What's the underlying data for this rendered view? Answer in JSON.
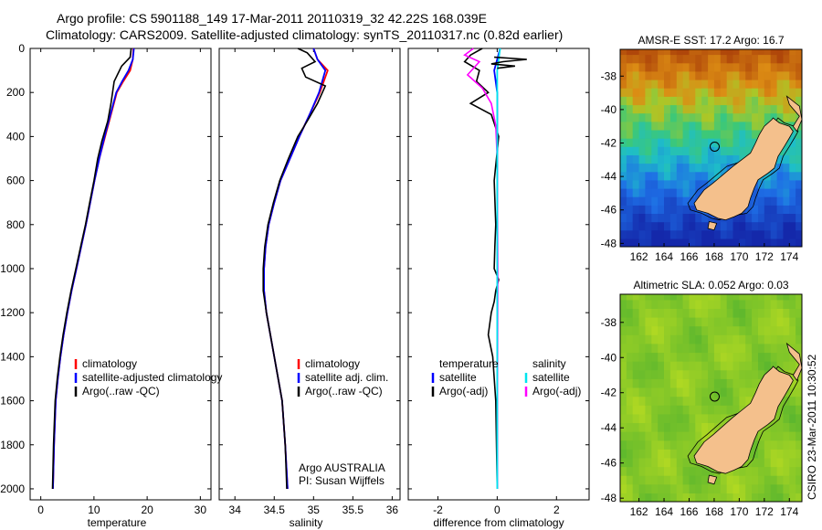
{
  "titles": {
    "line1": "Argo profile: CS 5901188_149 17-Mar-2011 20110319_32 42.22S 168.039E",
    "line2": "Climatology: CARS2009. Satellite-adjusted climatology: synTS_20110317.nc (0.82d earlier)"
  },
  "side_stamp": "CSIRO 23-Mar-2011 10:30:52",
  "colors": {
    "argo": "#000000",
    "climatology": "#ff0000",
    "satellite": "#0000ff",
    "salinity_satellite": "#00e5ee",
    "salinity_argo_adj": "#ff00ff",
    "land": "#f4c08c"
  },
  "chart_data": [
    {
      "type": "line",
      "id": "temperature",
      "xlabel": "temperature",
      "ylabel": "",
      "xlim": [
        -2,
        32
      ],
      "ylim": [
        2050,
        0
      ],
      "xticks": [
        0,
        10,
        20,
        30
      ],
      "yticks": [
        0,
        200,
        400,
        600,
        800,
        1000,
        1200,
        1400,
        1600,
        1800,
        2000
      ],
      "legend": [
        {
          "label": "climatology",
          "color": "#ff0000"
        },
        {
          "label": "satellite-adjusted climatology",
          "color": "#0000ff"
        },
        {
          "label": "Argo(..raw -QC)",
          "color": "#000000"
        }
      ],
      "series": [
        {
          "key": "clim",
          "color": "#ff0000",
          "x": [
            17.4,
            17.3,
            16.8,
            15.5,
            14.3,
            13.2,
            12.1,
            11.0,
            10.1,
            9.3,
            8.5,
            7.6,
            6.7,
            5.8,
            5.0,
            4.3,
            3.7,
            3.2,
            2.8,
            2.5,
            2.3
          ],
          "y": [
            0,
            50,
            100,
            150,
            200,
            300,
            400,
            500,
            600,
            700,
            800,
            900,
            1000,
            1100,
            1200,
            1300,
            1400,
            1500,
            1600,
            1800,
            2000
          ]
        },
        {
          "key": "sat",
          "color": "#0000ff",
          "x": [
            17.5,
            17.3,
            16.5,
            15.3,
            14.2,
            13.1,
            12.0,
            11.0,
            10.1,
            9.3,
            8.5,
            7.6,
            6.7,
            5.8,
            5.0,
            4.3,
            3.7,
            3.2,
            2.8,
            2.5,
            2.3
          ],
          "y": [
            0,
            50,
            100,
            150,
            200,
            300,
            400,
            500,
            600,
            700,
            800,
            900,
            1000,
            1100,
            1200,
            1300,
            1400,
            1500,
            1600,
            1800,
            2000
          ]
        },
        {
          "key": "argo",
          "color": "#000000",
          "x": [
            17.0,
            16.8,
            15.2,
            13.8,
            13.2,
            12.6,
            11.5,
            10.7,
            10.0,
            9.2,
            8.4,
            7.5,
            6.6,
            5.7,
            4.9,
            4.2,
            3.6,
            3.1,
            2.7,
            2.4,
            2.2
          ],
          "y": [
            0,
            40,
            80,
            150,
            250,
            330,
            420,
            500,
            600,
            700,
            800,
            900,
            1000,
            1100,
            1200,
            1300,
            1400,
            1500,
            1600,
            1800,
            2000
          ]
        }
      ]
    },
    {
      "type": "line",
      "id": "salinity",
      "xlabel": "salinity",
      "ylabel": "",
      "xlim": [
        33.8,
        36.1
      ],
      "ylim": [
        2050,
        0
      ],
      "xticks": [
        34,
        34.5,
        35,
        35.5,
        36
      ],
      "legend": [
        {
          "label": "climatology",
          "color": "#ff0000"
        },
        {
          "label": "satellite adj. clim.",
          "color": "#0000ff"
        },
        {
          "label": "Argo(..raw -QC)",
          "color": "#000000"
        }
      ],
      "annotation": [
        "Argo AUSTRALIA",
        "PI: Susan Wijffels"
      ],
      "series": [
        {
          "key": "clim",
          "color": "#ff0000",
          "x": [
            35.0,
            35.05,
            35.18,
            35.08,
            34.95,
            34.82,
            34.7,
            34.58,
            34.5,
            34.43,
            34.39,
            34.37,
            34.37,
            34.4,
            34.45,
            34.5,
            34.55,
            34.6,
            34.64,
            34.67
          ],
          "y": [
            0,
            50,
            100,
            200,
            300,
            400,
            500,
            600,
            700,
            800,
            900,
            1000,
            1100,
            1200,
            1300,
            1400,
            1500,
            1600,
            1800,
            2000
          ]
        },
        {
          "key": "sat",
          "color": "#0000ff",
          "x": [
            35.0,
            35.05,
            35.15,
            35.07,
            34.95,
            34.82,
            34.7,
            34.58,
            34.5,
            34.43,
            34.39,
            34.37,
            34.37,
            34.4,
            34.45,
            34.5,
            34.55,
            34.6,
            34.64,
            34.67
          ],
          "y": [
            0,
            50,
            100,
            200,
            300,
            400,
            500,
            600,
            700,
            800,
            900,
            1000,
            1100,
            1200,
            1300,
            1400,
            1500,
            1600,
            1800,
            2000
          ]
        },
        {
          "key": "argo",
          "color": "#000000",
          "x": [
            34.8,
            34.92,
            35.02,
            34.85,
            34.9,
            35.15,
            35.05,
            34.92,
            34.8,
            34.68,
            34.57,
            34.49,
            34.42,
            34.38,
            34.36,
            34.36,
            34.4,
            34.45,
            34.5,
            34.55,
            34.6,
            34.64,
            34.66
          ],
          "y": [
            0,
            20,
            60,
            90,
            130,
            170,
            250,
            330,
            400,
            500,
            600,
            700,
            800,
            900,
            1000,
            1100,
            1200,
            1300,
            1400,
            1500,
            1600,
            1800,
            2000
          ]
        }
      ]
    },
    {
      "type": "line",
      "id": "difference",
      "xlabel": "difference from climatology",
      "ylabel": "",
      "xlim": [
        -3,
        3.1
      ],
      "ylim": [
        2050,
        0
      ],
      "xticks": [
        -2,
        0,
        2
      ],
      "legend_left": {
        "header": "temperature",
        "items": [
          {
            "label": "satellite",
            "color": "#0000ff"
          },
          {
            "label": "Argo(-adj)",
            "color": "#000000"
          }
        ]
      },
      "legend_right": {
        "header": "salinity",
        "items": [
          {
            "label": "satellite",
            "color": "#00e5ee"
          },
          {
            "label": "Argo(-adj)",
            "color": "#ff00ff"
          }
        ]
      },
      "series": [
        {
          "key": "temp_argo",
          "color": "#000000",
          "x": [
            -0.5,
            -0.9,
            -1.1,
            -0.6,
            -0.7,
            -0.3,
            -0.9,
            -0.2,
            0.05,
            -0.1,
            -0.05,
            -0.08,
            -0.1,
            0.05,
            -0.05,
            -0.1,
            -0.2,
            -0.3,
            -0.15,
            -0.05,
            0.0
          ],
          "y": [
            0,
            30,
            60,
            100,
            150,
            200,
            250,
            300,
            400,
            600,
            800,
            900,
            1000,
            1050,
            1100,
            1150,
            1200,
            1300,
            1400,
            1600,
            2000
          ]
        },
        {
          "key": "temp_sat",
          "color": "#0000ff",
          "x": [
            0.1,
            0.0,
            -0.1,
            0.0,
            0.0,
            0.0,
            0.0
          ],
          "y": [
            0,
            50,
            100,
            200,
            500,
            1000,
            2000
          ]
        },
        {
          "key": "sal_argo",
          "color": "#ff00ff",
          "x": [
            -0.8,
            -1.1,
            -0.6,
            -1.0,
            -0.5,
            -0.2,
            -0.05,
            0.0,
            0.02,
            0.0
          ],
          "y": [
            0,
            30,
            60,
            120,
            180,
            250,
            350,
            500,
            1000,
            2000
          ]
        },
        {
          "key": "sal_sat",
          "color": "#00e5ee",
          "x": [
            0.1,
            0.05,
            0.0,
            0.0,
            0.0
          ],
          "y": [
            0,
            50,
            100,
            500,
            2000
          ]
        },
        {
          "key": "temp_argo_spike",
          "color": "#000000",
          "x": [
            -0.1,
            1.0,
            0.2,
            -0.2,
            0.6,
            0.0
          ],
          "y": [
            40,
            50,
            60,
            70,
            80,
            90
          ]
        }
      ]
    },
    {
      "type": "heatmap",
      "id": "sst_map",
      "title": "AMSR-E SST: 17.2 Argo: 16.7",
      "xlim": [
        160.5,
        175.0
      ],
      "ylim": [
        -48.2,
        -36.4
      ],
      "xticks": [
        162,
        164,
        166,
        168,
        170,
        172,
        174
      ],
      "yticks": [
        -38,
        -40,
        -42,
        -44,
        -46,
        -48
      ],
      "marker": {
        "lon": 168.04,
        "lat": -42.22
      }
    },
    {
      "type": "heatmap",
      "id": "sla_map",
      "title": "Altimetric SLA: 0.052 Argo: 0.03",
      "xlim": [
        160.5,
        175.0
      ],
      "ylim": [
        -48.2,
        -36.4
      ],
      "xticks": [
        162,
        164,
        166,
        168,
        170,
        172,
        174
      ],
      "yticks": [
        -38,
        -40,
        -42,
        -44,
        -46,
        -48
      ],
      "marker": {
        "lon": 168.04,
        "lat": -42.22
      }
    }
  ]
}
